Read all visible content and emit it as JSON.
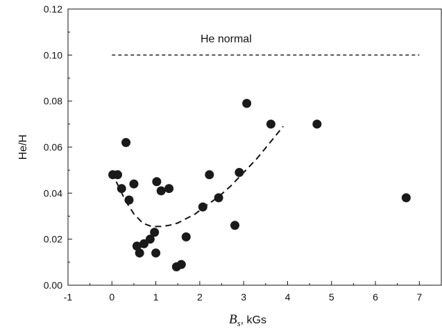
{
  "chart_data": {
    "type": "scatter",
    "xlabel_symbol": "B",
    "xlabel_subscript": "s",
    "xlabel_unit": ", kGs",
    "ylabel": "He/H",
    "xlim": [
      -1,
      7.5
    ],
    "ylim": [
      0.0,
      0.12
    ],
    "x_ticks": [
      -1,
      0,
      1,
      2,
      3,
      4,
      5,
      6,
      7
    ],
    "y_ticks": [
      0.0,
      0.02,
      0.04,
      0.06,
      0.08,
      0.1,
      0.12
    ],
    "x_tick_labels": [
      "-1",
      "0",
      "1",
      "2",
      "3",
      "4",
      "5",
      "6",
      "7"
    ],
    "y_tick_labels": [
      "0.00",
      "0.02",
      "0.04",
      "0.06",
      "0.08",
      "0.10",
      "0.12"
    ],
    "grid": false,
    "legend": "none",
    "annotation": "He normal",
    "reference_line": {
      "x": [
        0,
        7
      ],
      "y": 0.1
    },
    "points": [
      {
        "x": 0.02,
        "y": 0.048
      },
      {
        "x": 0.13,
        "y": 0.048
      },
      {
        "x": 0.22,
        "y": 0.042
      },
      {
        "x": 0.32,
        "y": 0.062
      },
      {
        "x": 0.39,
        "y": 0.037
      },
      {
        "x": 0.5,
        "y": 0.044
      },
      {
        "x": 0.57,
        "y": 0.017
      },
      {
        "x": 0.63,
        "y": 0.014
      },
      {
        "x": 0.73,
        "y": 0.018
      },
      {
        "x": 0.87,
        "y": 0.02
      },
      {
        "x": 0.97,
        "y": 0.023
      },
      {
        "x": 1.0,
        "y": 0.014
      },
      {
        "x": 1.02,
        "y": 0.045
      },
      {
        "x": 1.12,
        "y": 0.041
      },
      {
        "x": 1.3,
        "y": 0.042
      },
      {
        "x": 1.47,
        "y": 0.008
      },
      {
        "x": 1.58,
        "y": 0.009
      },
      {
        "x": 1.69,
        "y": 0.021
      },
      {
        "x": 2.07,
        "y": 0.034
      },
      {
        "x": 2.22,
        "y": 0.048
      },
      {
        "x": 2.43,
        "y": 0.038
      },
      {
        "x": 2.8,
        "y": 0.026
      },
      {
        "x": 2.9,
        "y": 0.049
      },
      {
        "x": 3.07,
        "y": 0.079
      },
      {
        "x": 3.62,
        "y": 0.07
      },
      {
        "x": 4.67,
        "y": 0.07
      },
      {
        "x": 6.7,
        "y": 0.038
      }
    ],
    "fit_curve": {
      "x": [
        0.1,
        0.3,
        0.5,
        0.7,
        0.9,
        1.1,
        1.3,
        1.5,
        1.7,
        1.9,
        2.1,
        2.4,
        2.7,
        3.0,
        3.3,
        3.6,
        3.9
      ],
      "y": [
        0.045,
        0.037,
        0.031,
        0.027,
        0.0255,
        0.0255,
        0.026,
        0.027,
        0.029,
        0.031,
        0.034,
        0.038,
        0.043,
        0.049,
        0.055,
        0.062,
        0.069
      ]
    },
    "colors": {
      "marker": "#1a1a1a",
      "line": "#111111"
    }
  }
}
